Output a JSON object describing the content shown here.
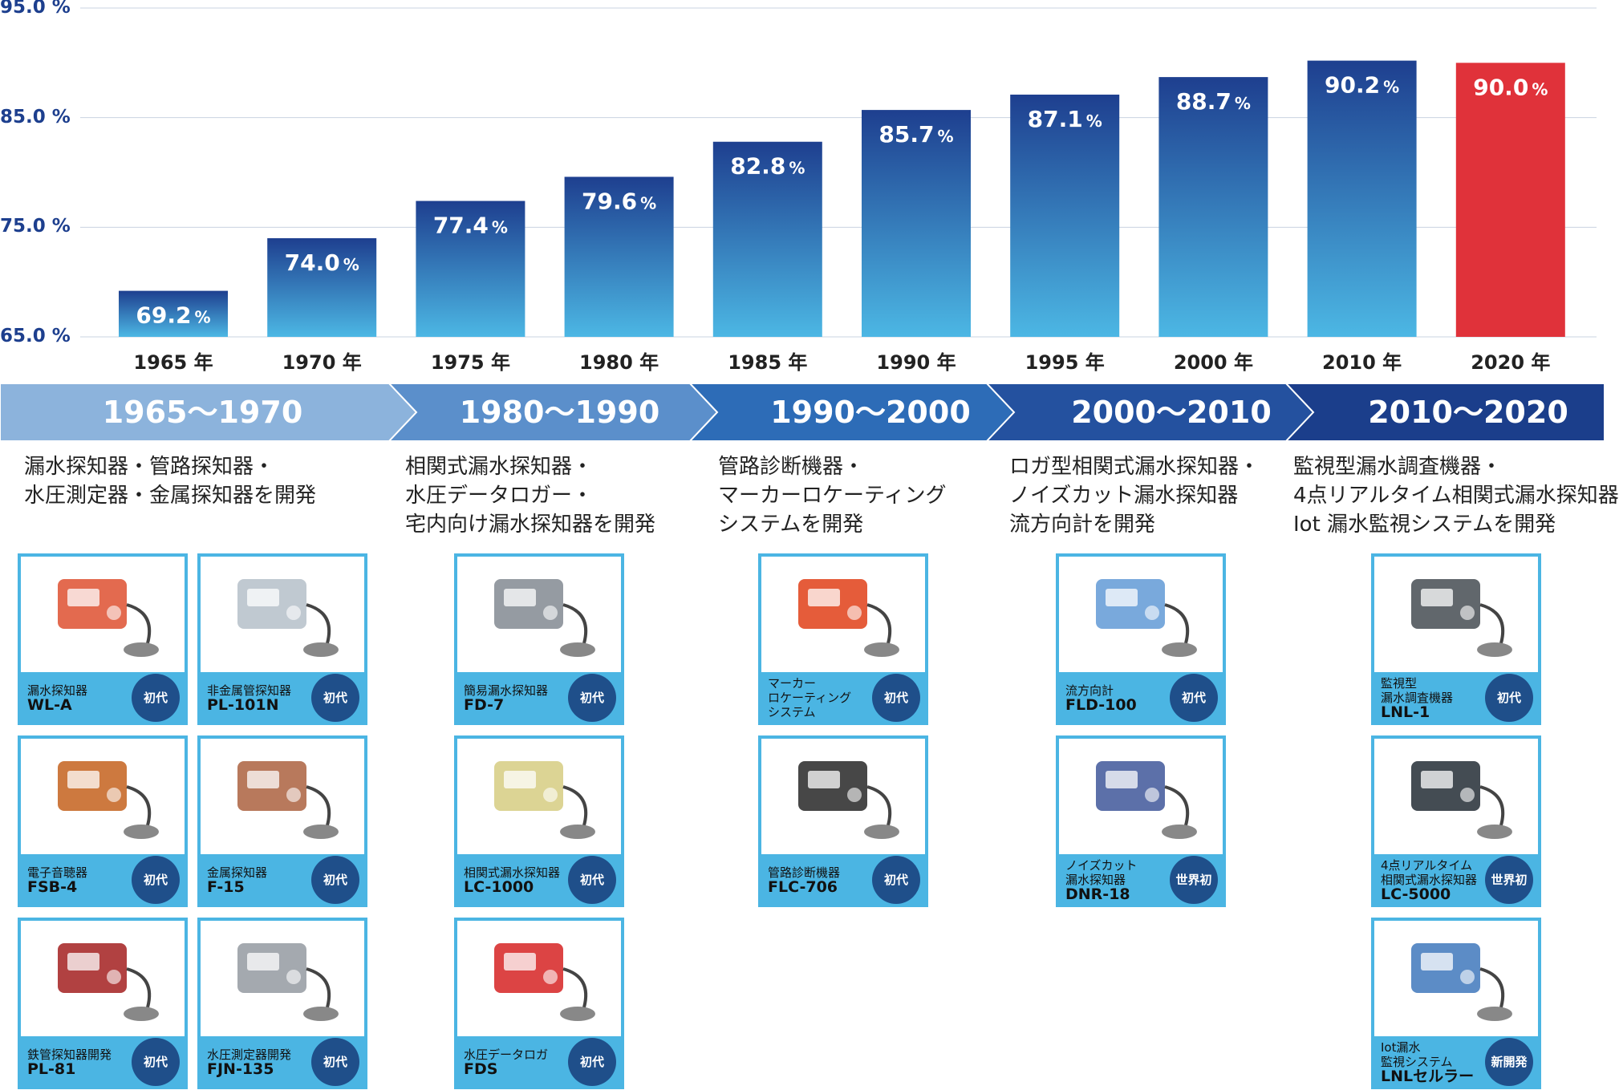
{
  "chart_data": {
    "type": "bar",
    "categories": [
      "1965 年",
      "1970 年",
      "1975 年",
      "1980 年",
      "1985 年",
      "1990 年",
      "1995 年",
      "2000 年",
      "2010 年",
      "2020 年"
    ],
    "values": [
      69.2,
      74.0,
      77.4,
      79.6,
      82.8,
      85.7,
      87.1,
      88.7,
      90.2,
      90.0
    ],
    "value_labels": [
      "69.2",
      "74.0",
      "77.4",
      "79.6",
      "82.8",
      "85.7",
      "87.1",
      "88.7",
      "90.2",
      "90.0"
    ],
    "value_unit": "%",
    "ylim": [
      65,
      95
    ],
    "yticks": [
      "65.0 %",
      "75.0 %",
      "85.0 %",
      "95.0 %"
    ],
    "yticks_values": [
      65,
      75,
      85,
      95
    ],
    "highlight_index": 9,
    "colors": {
      "bar_top": "#1e3f8f",
      "bar_bottom": "#4cb7e4",
      "highlight": "#e0323a"
    },
    "title": "",
    "xlabel": "",
    "ylabel": ""
  },
  "timeline": {
    "colors": [
      "#8cb3dc",
      "#5b8fcb",
      "#2d6cb7",
      "#24519f",
      "#1b3e8b"
    ],
    "periods": [
      {
        "label": "1965〜1970",
        "desc": [
          "漏水探知器・管路探知器・",
          "水圧測定器・金属探知器を開発"
        ]
      },
      {
        "label": "1980〜1990",
        "desc": [
          "相関式漏水探知器・",
          "水圧データロガー・",
          "宅内向け漏水探知器を開発"
        ]
      },
      {
        "label": "1990〜2000",
        "desc": [
          "管路診断機器・",
          "マーカーロケーティング",
          "システムを開発"
        ]
      },
      {
        "label": "2000〜2010",
        "desc": [
          "ロガ型相関式漏水探知器・",
          "ノイズカット漏水探知器",
          "流方向計を開発"
        ]
      },
      {
        "label": "2010〜2020",
        "desc": [
          "監視型漏水調査機器・",
          "4点リアルタイム相関式漏水探知器",
          "Iot 漏水監視システムを開発"
        ]
      }
    ]
  },
  "products": [
    {
      "name": [
        "漏水探知器"
      ],
      "model": "WL-A",
      "badge": "初代",
      "icon": "leak-detector-icon"
    },
    {
      "name": [
        "非金属管探知器"
      ],
      "model": "PL-101N",
      "badge": "初代",
      "icon": "pipe-locator-icon"
    },
    {
      "name": [
        "電子音聴器"
      ],
      "model": "FSB-4",
      "badge": "初代",
      "icon": "listening-rod-icon"
    },
    {
      "name": [
        "金属探知器"
      ],
      "model": "F-15",
      "badge": "初代",
      "icon": "metal-detector-icon"
    },
    {
      "name": [
        "鉄管探知器開発"
      ],
      "model": "PL-81",
      "badge": "初代",
      "icon": "case-detector-icon"
    },
    {
      "name": [
        "水圧測定器開発"
      ],
      "model": "FJN-135",
      "badge": "初代",
      "icon": "pressure-recorder-icon"
    },
    {
      "name": [
        "簡易漏水探知器"
      ],
      "model": "FD-7",
      "badge": "初代",
      "icon": "simple-detector-icon"
    },
    {
      "name": [
        "相関式漏水探知器"
      ],
      "model": "LC-1000",
      "badge": "初代",
      "icon": "correlator-icon"
    },
    {
      "name": [
        "水圧データロガ"
      ],
      "model": "FDS",
      "badge": "初代",
      "icon": "pressure-logger-icon"
    },
    {
      "name": [
        "マーカー",
        "ロケーティング",
        "システム"
      ],
      "model": "",
      "badge": "初代",
      "icon": "marker-locator-icon"
    },
    {
      "name": [
        "管路診断機器"
      ],
      "model": "FLC-706",
      "badge": "初代",
      "icon": "pipe-diagnosis-icon"
    },
    {
      "name": [
        "流方向計"
      ],
      "model": "FLD-100",
      "badge": "初代",
      "icon": "flow-direction-icon"
    },
    {
      "name": [
        "ノイズカット",
        "漏水探知器"
      ],
      "model": "DNR-18",
      "badge": "世界初",
      "icon": "noise-cut-detector-icon"
    },
    {
      "name": [
        "監視型",
        "漏水調査機器"
      ],
      "model": "LNL-1",
      "badge": "初代",
      "icon": "monitoring-logger-icon"
    },
    {
      "name": [
        "4点リアルタイム",
        "相関式漏水探知器"
      ],
      "model": "LC-5000",
      "badge": "世界初",
      "icon": "realtime-correlator-icon"
    },
    {
      "name": [
        "Iot漏水",
        "監視システム"
      ],
      "model": "LNLセルラー",
      "badge": "新開発",
      "icon": "iot-system-icon"
    }
  ]
}
